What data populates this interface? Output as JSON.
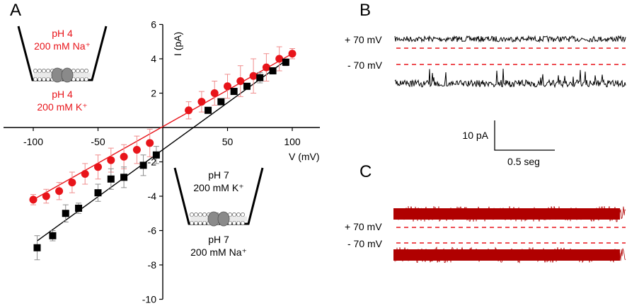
{
  "panels": {
    "a": "A",
    "b": "B",
    "c": "C"
  },
  "colors": {
    "red_series": "#e8141a",
    "black_series": "#000000",
    "error_red": "#f08c8c",
    "error_black": "#8c8c8c",
    "trace_c": "#b00000",
    "dash": "#e8141a"
  },
  "inset_top": {
    "line1": "pH 4",
    "line2": "200 mM Na⁺",
    "line3": "pH 4",
    "line4": "200 mM K⁺"
  },
  "inset_bottom": {
    "line1": "pH 7",
    "line2": "200 mM K⁺",
    "line3": "pH 7",
    "line4": "200 mM Na⁺"
  },
  "panel_b": {
    "label_pos": "+ 70 mV",
    "label_neg": "- 70 mV",
    "scale_current": "10 pA",
    "scale_time": "0.5 seg"
  },
  "panel_c": {
    "label_pos": "+ 70 mV",
    "label_neg": "- 70 mV"
  },
  "chart_data": {
    "type": "scatter",
    "title": "",
    "xlabel": "V (mV)",
    "ylabel": "I (pA)",
    "xlim": [
      -110,
      110
    ],
    "ylim": [
      -10,
      6
    ],
    "x_ticks": [
      -100,
      -50,
      50,
      100
    ],
    "x_tick_labels": [
      "-100",
      "-50",
      "50",
      "100"
    ],
    "y_ticks": [
      6,
      4,
      2,
      -2,
      -4,
      -6,
      -8,
      -10
    ],
    "y_tick_labels": [
      "6",
      "4",
      "2",
      "-2",
      "-4",
      "-6",
      "-8",
      "-10"
    ],
    "grid": false,
    "series": [
      {
        "name": "pH 4 (red)",
        "color": "red",
        "marker": "circle",
        "x": [
          -100,
          -90,
          -80,
          -70,
          -60,
          -50,
          -40,
          -30,
          -20,
          -10,
          20,
          30,
          40,
          50,
          60,
          70,
          80,
          90,
          100
        ],
        "y": [
          -4.2,
          -4.0,
          -3.7,
          -3.2,
          -2.7,
          -2.3,
          -1.9,
          -1.7,
          -1.3,
          -0.9,
          1.0,
          1.5,
          2.0,
          2.4,
          2.7,
          3.0,
          3.5,
          4.0,
          4.3
        ],
        "err": [
          0.3,
          0.4,
          0.5,
          0.6,
          0.6,
          0.7,
          0.7,
          0.7,
          0.8,
          0.8,
          0.5,
          0.6,
          0.7,
          0.7,
          0.9,
          1.0,
          0.8,
          0.7,
          0.3
        ],
        "fit": {
          "x": [
            -100,
            100
          ],
          "y": [
            -4.2,
            4.3
          ]
        }
      },
      {
        "name": "pH 7 (black)",
        "color": "black",
        "marker": "square",
        "x": [
          -97,
          -85,
          -75,
          -65,
          -50,
          -40,
          -30,
          -15,
          -5,
          35,
          45,
          55,
          65,
          75,
          85,
          95
        ],
        "y": [
          -7.0,
          -6.3,
          -5.0,
          -4.7,
          -3.8,
          -3.0,
          -2.9,
          -2.2,
          -1.6,
          1.0,
          1.5,
          2.1,
          2.4,
          2.9,
          3.3,
          3.8
        ],
        "err": [
          0.7,
          0.3,
          0.5,
          0.3,
          0.5,
          0.6,
          0.6,
          0.6,
          0.5,
          0.0,
          0.0,
          0.0,
          0.0,
          0.3,
          0.0,
          0.2
        ],
        "fit": {
          "x": [
            -97,
            95
          ],
          "y": [
            -6.6,
            3.9
          ]
        }
      }
    ]
  }
}
